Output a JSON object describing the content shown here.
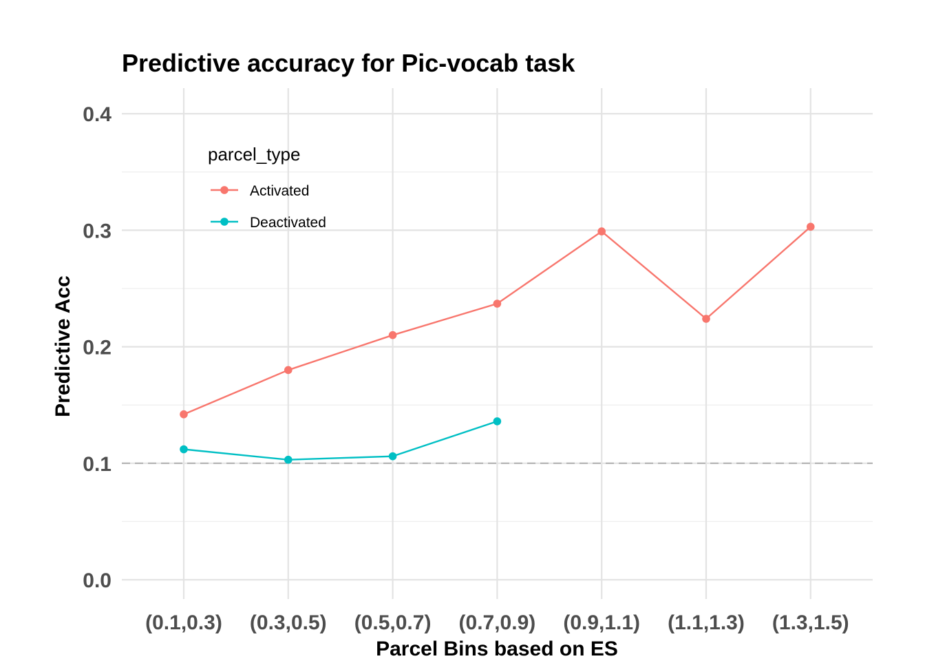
{
  "chart_data": {
    "type": "line",
    "title": "Predictive accuracy for Pic-vocab task",
    "xlabel": "Parcel Bins based on ES",
    "ylabel": "Predictive Acc",
    "categories": [
      "(0.1,0.3)",
      "(0.3,0.5)",
      "(0.5,0.7)",
      "(0.7,0.9)",
      "(0.9,1.1)",
      "(1.1,1.3)",
      "(1.3,1.5)"
    ],
    "ylim": [
      0,
      0.42
    ],
    "yticks": [
      0.0,
      0.1,
      0.2,
      0.3,
      0.4
    ],
    "ytick_labels": [
      "0.0",
      "0.1",
      "0.2",
      "0.3",
      "0.4"
    ],
    "grid": true,
    "reference_line": {
      "y": 0.1,
      "style": "dashed",
      "color": "#b3b3b3"
    },
    "legend": {
      "title": "parcel_type",
      "position": "top-left inside"
    },
    "series": [
      {
        "name": "Activated",
        "color": "#F8766D",
        "values": [
          0.142,
          0.18,
          0.21,
          0.237,
          0.299,
          0.224,
          0.303
        ]
      },
      {
        "name": "Deactivated",
        "color": "#00BFC4",
        "values": [
          0.112,
          0.103,
          0.106,
          0.136,
          null,
          null,
          null
        ]
      }
    ]
  }
}
